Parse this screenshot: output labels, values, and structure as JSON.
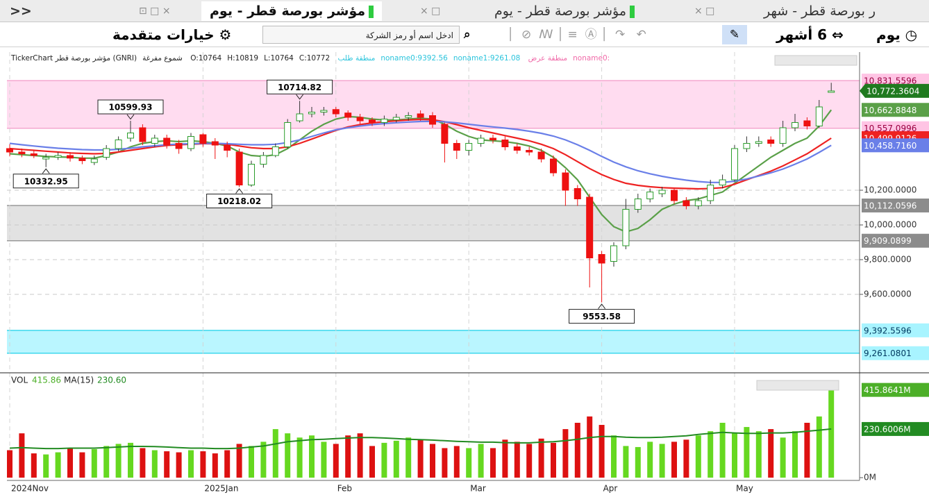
{
  "tabs": {
    "collapse": "<<",
    "items": [
      "ر بورصة قطر - شهر",
      "مؤشر بورصة قطر - يوم",
      "مؤشر بورصة قطر - يوم"
    ]
  },
  "toolbar": {
    "period": "يوم",
    "range": "6 أشهر",
    "search_placeholder": "ادخل اسم أو رمز الشركة",
    "advanced": "خيارات متقدمة"
  },
  "chart_data": {
    "type": "candlestick",
    "info": {
      "name": "TickerChart مؤشر بورصة قطر (GNRI)",
      "style": "شموع مفرغة",
      "ohlc": [
        "O:10764",
        "H:10819",
        "L:10764",
        "C:10772"
      ],
      "demand": [
        "منطقة طلب",
        "noname0:9392.56",
        "noname1:9261.08"
      ],
      "supply": [
        "منطقة عرض",
        "noname0:"
      ]
    },
    "up_color": "#2a9d2a",
    "down_color": "#ee1111",
    "x_labels": [
      {
        "index": 0,
        "label": "2024Nov"
      },
      {
        "index": 16,
        "label": "2025Jan"
      },
      {
        "index": 27,
        "label": "Feb"
      },
      {
        "index": 38,
        "label": "Mar"
      },
      {
        "index": 49,
        "label": "Apr"
      },
      {
        "index": 60,
        "label": "May"
      }
    ],
    "open": [
      10440,
      10420,
      10410,
      10380,
      10390,
      10400,
      10385,
      10360,
      10390,
      10440,
      10500,
      10560,
      10470,
      10500,
      10470,
      10440,
      10520,
      10480,
      10460,
      10420,
      10230,
      10350,
      10400,
      10450,
      10600,
      10640,
      10650,
      10665,
      10645,
      10620,
      10605,
      10590,
      10605,
      10620,
      10640,
      10630,
      10580,
      10470,
      10430,
      10470,
      10500,
      10490,
      10450,
      10430,
      10420,
      10380,
      10300,
      10210,
      10160,
      9830,
      9790,
      9880,
      10090,
      10150,
      10180,
      10200,
      10140,
      10110,
      10140,
      10230,
      10260,
      10440,
      10470,
      10490,
      10470,
      10560,
      10600,
      10570,
      10764
    ],
    "high": [
      10465,
      10440,
      10430,
      10410,
      10420,
      10420,
      10400,
      10400,
      10460,
      10510,
      10599.93,
      10580,
      10520,
      10520,
      10490,
      10530,
      10530,
      10500,
      10480,
      10440,
      10370,
      10420,
      10470,
      10610,
      10714.82,
      10680,
      10680,
      10680,
      10660,
      10640,
      10620,
      10630,
      10640,
      10650,
      10660,
      10650,
      10590,
      10490,
      10490,
      10520,
      10520,
      10510,
      10470,
      10450,
      10440,
      10400,
      10320,
      10230,
      10180,
      9850,
      9900,
      10150,
      10180,
      10210,
      10220,
      10210,
      10160,
      10160,
      10260,
      10290,
      10460,
      10510,
      10510,
      10510,
      10600,
      10640,
      10620,
      10720,
      10819
    ],
    "low": [
      10395,
      10390,
      10385,
      10332.95,
      10375,
      10365,
      10350,
      10345,
      10375,
      10425,
      10480,
      10460,
      10450,
      10440,
      10410,
      10425,
      10450,
      10380,
      10390,
      10218.02,
      10220,
      10330,
      10390,
      10440,
      10590,
      10620,
      10630,
      10620,
      10600,
      10580,
      10570,
      10570,
      10590,
      10600,
      10600,
      10560,
      10360,
      10380,
      10400,
      10450,
      10470,
      10430,
      10410,
      10400,
      10360,
      10280,
      10110,
      10110,
      9640,
      9553.58,
      9760,
      9860,
      10070,
      10130,
      10160,
      10120,
      10090,
      10090,
      10120,
      10210,
      10250,
      10420,
      10450,
      10450,
      10450,
      10540,
      10550,
      10560,
      10764
    ],
    "close": [
      10420,
      10410,
      10400,
      10390,
      10400,
      10385,
      10370,
      10380,
      10440,
      10490,
      10530,
      10480,
      10500,
      10460,
      10440,
      10510,
      10470,
      10460,
      10430,
      10230,
      10350,
      10400,
      10450,
      10590,
      10640,
      10650,
      10660,
      10640,
      10620,
      10600,
      10590,
      10610,
      10620,
      10630,
      10620,
      10580,
      10470,
      10430,
      10470,
      10500,
      10490,
      10450,
      10430,
      10420,
      10380,
      10300,
      10200,
      10150,
      9810,
      9780,
      9880,
      10090,
      10150,
      10190,
      10200,
      10140,
      10110,
      10140,
      10230,
      10260,
      10440,
      10470,
      10480,
      10470,
      10560,
      10590,
      10570,
      10680,
      10772
    ],
    "ylim": [
      9156,
      10996
    ],
    "yticks": [
      {
        "value": 9600,
        "label": "9,600.0000"
      },
      {
        "value": 9800,
        "label": "9,800.0000"
      },
      {
        "value": 10000,
        "label": "10,000.0000"
      },
      {
        "value": 10200,
        "label": "10,200.0000"
      }
    ],
    "grid": true,
    "zones": [
      {
        "color": "#ffdcf0",
        "edge": "#f4a6cf",
        "label_color": "#ffc4e4",
        "text_color": "#9a0040",
        "from": {
          "value": 10557.0996,
          "label": "10,557.0996"
        },
        "to": {
          "value": 10831.5596,
          "label": "10,831.5596"
        }
      },
      {
        "color": "#e2e2e2",
        "edge": "#999999",
        "label_color": "#8c8c8c",
        "text_color": "#ffffff",
        "from": {
          "value": 9909.0899,
          "label": "9,909.0899"
        },
        "to": {
          "value": 10112.0596,
          "label": "10,112.0596"
        }
      },
      {
        "color": "#baf6ff",
        "edge": "#3cd8ee",
        "label_color": "#a8f4ff",
        "text_color": "#003a60",
        "from": {
          "value": 9261.0801,
          "label": "9,261.0801"
        },
        "to": {
          "value": 9392.5596,
          "label": "9,392.5596"
        }
      }
    ],
    "series": [
      {
        "color": "#5aa048",
        "last_label": "10,662.8848",
        "values": [
          10410,
          10405,
          10400,
          10395,
          10392,
          10390,
          10385,
          10385,
          10400,
          10420,
          10450,
          10470,
          10480,
          10485,
          10480,
          10485,
          10480,
          10470,
          10455,
          10420,
          10400,
          10395,
          10405,
          10440,
          10490,
          10540,
          10580,
          10610,
          10625,
          10620,
          10610,
          10605,
          10605,
          10610,
          10615,
          10610,
          10580,
          10540,
          10510,
          10490,
          10485,
          10480,
          10470,
          10455,
          10430,
          10390,
          10330,
          10260,
          10160,
          10060,
          9990,
          9960,
          9980,
          10030,
          10090,
          10120,
          10140,
          10150,
          10170,
          10190,
          10240,
          10290,
          10340,
          10390,
          10430,
          10470,
          10500,
          10570,
          10662.8848
        ]
      },
      {
        "color": "#ee2222",
        "last_label": "10,499.9126",
        "values": [
          10440,
          10435,
          10430,
          10425,
          10420,
          10415,
          10412,
          10410,
          10412,
          10420,
          10430,
          10440,
          10450,
          10458,
          10462,
          10465,
          10468,
          10468,
          10465,
          10455,
          10445,
          10440,
          10440,
          10450,
          10470,
          10495,
          10520,
          10545,
          10565,
          10578,
          10588,
          10595,
          10600,
          10605,
          10608,
          10606,
          10595,
          10578,
          10560,
          10545,
          10530,
          10515,
          10500,
          10485,
          10465,
          10440,
          10405,
          10365,
          10325,
          10290,
          10262,
          10240,
          10228,
          10220,
          10215,
          10212,
          10210,
          10208,
          10210,
          10215,
          10235,
          10260,
          10285,
          10310,
          10340,
          10375,
          10410,
          10455,
          10499.9126
        ]
      },
      {
        "color": "#6a7fe8",
        "last_label": "10,458.7160",
        "values": [
          10470,
          10462,
          10455,
          10448,
          10442,
          10438,
          10434,
          10432,
          10432,
          10436,
          10442,
          10450,
          10456,
          10462,
          10466,
          10468,
          10470,
          10470,
          10468,
          10465,
          10462,
          10462,
          10465,
          10475,
          10490,
          10510,
          10530,
          10548,
          10560,
          10570,
          10578,
          10584,
          10589,
          10593,
          10596,
          10597,
          10594,
          10588,
          10580,
          10572,
          10565,
          10558,
          10550,
          10540,
          10528,
          10512,
          10490,
          10462,
          10430,
          10395,
          10362,
          10335,
          10312,
          10295,
          10280,
          10268,
          10258,
          10250,
          10245,
          10245,
          10252,
          10265,
          10282,
          10300,
          10322,
          10350,
          10380,
          10418,
          10458.716
        ]
      }
    ],
    "last_price": {
      "value": 10772.3604,
      "label": "10,772.3604"
    },
    "marked_highs": [
      10,
      24
    ],
    "marked_lows": [
      3,
      19,
      49
    ],
    "volume": {
      "title": "VOL",
      "value_text": "415.86",
      "ma_title": "MA(15)",
      "ma_text": "230.60",
      "up_color": "#66d820",
      "down_color": "#dd1111",
      "ma_color": "#228b22",
      "values": [
        130,
        210,
        115,
        110,
        120,
        140,
        120,
        135,
        150,
        160,
        165,
        140,
        130,
        125,
        120,
        130,
        125,
        115,
        130,
        160,
        150,
        170,
        230,
        210,
        190,
        200,
        170,
        160,
        200,
        210,
        150,
        165,
        175,
        190,
        180,
        160,
        140,
        150,
        140,
        160,
        140,
        180,
        170,
        160,
        185,
        165,
        230,
        260,
        290,
        250,
        200,
        150,
        145,
        170,
        160,
        170,
        180,
        200,
        220,
        260,
        210,
        240,
        220,
        230,
        190,
        220,
        260,
        290,
        415.8641
      ],
      "value_labels_last": "415.8641M",
      "ma": [
        140,
        142,
        140,
        138,
        138,
        140,
        140,
        140,
        142,
        145,
        148,
        148,
        147,
        145,
        142,
        140,
        140,
        138,
        138,
        140,
        145,
        150,
        160,
        170,
        175,
        180,
        182,
        185,
        188,
        190,
        190,
        188,
        185,
        182,
        180,
        178,
        175,
        172,
        170,
        168,
        168,
        166,
        165,
        165,
        168,
        170,
        175,
        182,
        190,
        195,
        195,
        192,
        190,
        190,
        192,
        195,
        198,
        205,
        210,
        215,
        212,
        210,
        210,
        212,
        212,
        215,
        220,
        225,
        230.6006
      ],
      "ma_last_label": "230.6006M",
      "ylim": [
        0,
        487
      ],
      "yticks": [
        {
          "value": 0,
          "label": "0M"
        }
      ]
    }
  }
}
